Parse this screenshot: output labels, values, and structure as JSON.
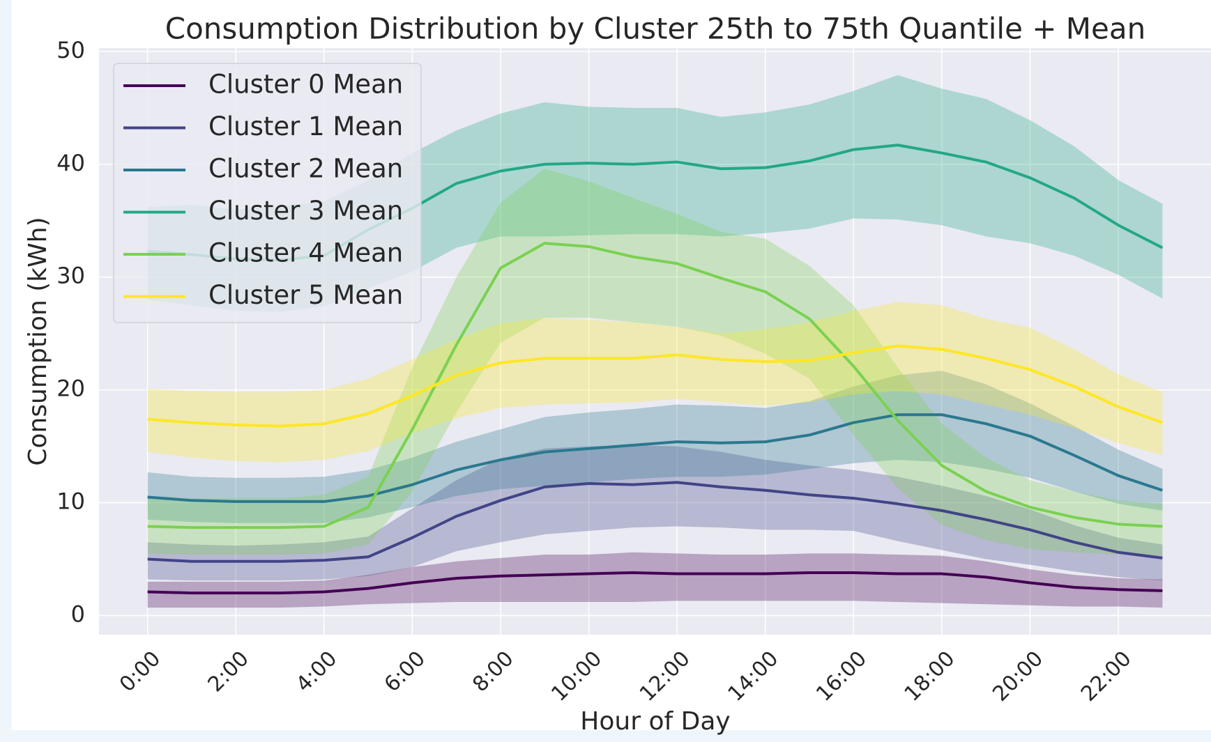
{
  "chart_data": {
    "type": "line_band",
    "title": "Consumption Distribution by Cluster 25th to 75th Quantile + Mean",
    "xlabel": "Hour of Day",
    "ylabel": "Consumption (kWh)",
    "x": [
      0,
      1,
      2,
      3,
      4,
      5,
      6,
      7,
      8,
      9,
      10,
      11,
      12,
      13,
      14,
      15,
      16,
      17,
      18,
      19,
      20,
      21,
      22,
      23
    ],
    "xlim": [
      -1.1,
      24.1
    ],
    "xticks": [
      {
        "value": 0,
        "label": "0:00"
      },
      {
        "value": 2,
        "label": "2:00"
      },
      {
        "value": 4,
        "label": "4:00"
      },
      {
        "value": 6,
        "label": "6:00"
      },
      {
        "value": 8,
        "label": "8:00"
      },
      {
        "value": 10,
        "label": "10:00"
      },
      {
        "value": 12,
        "label": "12:00"
      },
      {
        "value": 14,
        "label": "14:00"
      },
      {
        "value": 16,
        "label": "16:00"
      },
      {
        "value": 18,
        "label": "18:00"
      },
      {
        "value": 20,
        "label": "20:00"
      },
      {
        "value": 22,
        "label": "22:00"
      }
    ],
    "ylim": [
      -1.7,
      50.3
    ],
    "yticks": [
      0,
      10,
      20,
      30,
      40,
      50
    ],
    "grid": true,
    "legend": "upper left",
    "series": [
      {
        "name": "Cluster 0 Mean",
        "color": "#440154",
        "values": [
          2.1,
          2.0,
          2.0,
          2.0,
          2.1,
          2.4,
          2.9,
          3.3,
          3.5,
          3.6,
          3.7,
          3.8,
          3.7,
          3.7,
          3.7,
          3.8,
          3.8,
          3.7,
          3.7,
          3.4,
          2.9,
          2.5,
          2.3,
          2.2
        ],
        "q25": [
          0.7,
          0.7,
          0.7,
          0.7,
          0.8,
          1.0,
          1.1,
          1.2,
          1.2,
          1.2,
          1.2,
          1.2,
          1.3,
          1.3,
          1.3,
          1.3,
          1.3,
          1.2,
          1.1,
          1.0,
          0.9,
          0.8,
          0.8,
          0.7
        ],
        "q75": [
          3.0,
          3.0,
          3.0,
          3.0,
          3.1,
          3.6,
          4.3,
          4.8,
          5.1,
          5.4,
          5.4,
          5.6,
          5.5,
          5.4,
          5.4,
          5.5,
          5.5,
          5.4,
          5.3,
          4.8,
          4.1,
          3.6,
          3.3,
          3.2
        ]
      },
      {
        "name": "Cluster 1 Mean",
        "color": "#414487",
        "values": [
          5.0,
          4.8,
          4.8,
          4.8,
          4.9,
          5.2,
          6.9,
          8.8,
          10.2,
          11.4,
          11.7,
          11.6,
          11.8,
          11.4,
          11.1,
          10.7,
          10.4,
          9.9,
          9.3,
          8.5,
          7.6,
          6.5,
          5.6,
          5.1
        ],
        "q25": [
          3.2,
          3.1,
          3.1,
          3.1,
          3.2,
          3.5,
          4.3,
          5.7,
          6.5,
          7.2,
          7.5,
          7.8,
          7.9,
          7.8,
          7.6,
          7.6,
          7.5,
          6.6,
          5.8,
          5.0,
          4.5,
          3.9,
          3.4,
          3.1
        ],
        "q75": [
          6.5,
          6.3,
          6.2,
          6.3,
          6.5,
          7.0,
          9.5,
          12.0,
          13.9,
          14.8,
          15.0,
          15.1,
          15.0,
          14.5,
          13.8,
          13.3,
          12.9,
          12.3,
          11.5,
          10.6,
          9.4,
          8.0,
          6.9,
          6.3
        ]
      },
      {
        "name": "Cluster 2 Mean",
        "color": "#2a788e",
        "values": [
          10.5,
          10.2,
          10.1,
          10.1,
          10.1,
          10.6,
          11.6,
          12.9,
          13.8,
          14.5,
          14.8,
          15.1,
          15.4,
          15.3,
          15.4,
          16.0,
          17.1,
          17.8,
          17.8,
          17.0,
          15.9,
          14.2,
          12.4,
          11.1
        ],
        "q25": [
          8.5,
          8.3,
          8.2,
          8.2,
          8.2,
          8.7,
          9.6,
          10.6,
          11.2,
          11.5,
          11.8,
          12.1,
          12.3,
          12.3,
          12.5,
          13.0,
          13.5,
          13.8,
          13.6,
          13.0,
          12.2,
          11.0,
          9.9,
          9.3
        ],
        "q75": [
          12.7,
          12.3,
          12.2,
          12.2,
          12.3,
          12.9,
          14.0,
          15.4,
          16.5,
          17.6,
          18.0,
          18.3,
          18.7,
          18.6,
          18.4,
          19.0,
          20.3,
          21.3,
          21.7,
          20.5,
          18.8,
          16.8,
          14.7,
          13.0
        ]
      },
      {
        "name": "Cluster 3 Mean",
        "color": "#22a884",
        "values": [
          32.3,
          32.0,
          31.6,
          31.5,
          31.9,
          34.2,
          36.1,
          38.3,
          39.4,
          40.0,
          40.1,
          40.0,
          40.2,
          39.6,
          39.7,
          40.3,
          41.3,
          41.7,
          41.0,
          40.2,
          38.8,
          37.0,
          34.6,
          32.6
        ],
        "q25": [
          28.0,
          27.5,
          27.0,
          26.9,
          27.4,
          29.0,
          30.5,
          32.6,
          33.6,
          33.6,
          33.7,
          33.8,
          33.8,
          33.6,
          33.9,
          34.3,
          35.2,
          35.1,
          34.6,
          33.6,
          33.0,
          31.9,
          30.2,
          28.1
        ],
        "q75": [
          36.2,
          36.4,
          36.0,
          36.3,
          36.7,
          38.6,
          41.0,
          43.0,
          44.5,
          45.5,
          45.1,
          45.0,
          45.0,
          44.2,
          44.6,
          45.3,
          46.5,
          47.9,
          46.7,
          45.8,
          43.9,
          41.6,
          38.6,
          36.5
        ]
      },
      {
        "name": "Cluster 4 Mean",
        "color": "#7ad151",
        "values": [
          7.9,
          7.8,
          7.8,
          7.8,
          7.9,
          9.6,
          16.5,
          24.0,
          30.8,
          33.0,
          32.7,
          31.8,
          31.2,
          29.9,
          28.7,
          26.3,
          22.1,
          17.3,
          13.3,
          11.0,
          9.6,
          8.7,
          8.1,
          7.9
        ],
        "q25": [
          5.5,
          5.4,
          5.4,
          5.4,
          5.5,
          6.3,
          11.0,
          18.0,
          24.2,
          26.4,
          26.4,
          26.0,
          25.6,
          24.8,
          23.2,
          21.0,
          16.0,
          11.3,
          8.0,
          6.7,
          5.9,
          5.6,
          5.4,
          5.3
        ],
        "q75": [
          10.6,
          10.4,
          10.4,
          10.4,
          10.7,
          12.3,
          22.0,
          30.0,
          36.6,
          39.6,
          38.5,
          37.0,
          35.6,
          34.0,
          33.4,
          31.0,
          27.5,
          22.0,
          17.0,
          14.0,
          12.0,
          11.0,
          10.2,
          9.9
        ]
      },
      {
        "name": "Cluster 5 Mean",
        "color": "#fde725",
        "values": [
          17.4,
          17.1,
          16.9,
          16.8,
          17.0,
          17.9,
          19.5,
          21.3,
          22.4,
          22.8,
          22.8,
          22.8,
          23.1,
          22.7,
          22.5,
          22.6,
          23.3,
          23.9,
          23.6,
          22.8,
          21.8,
          20.3,
          18.5,
          17.1
        ],
        "q25": [
          14.5,
          14.0,
          13.7,
          13.6,
          13.8,
          14.6,
          16.2,
          17.5,
          18.4,
          18.7,
          18.8,
          18.9,
          19.2,
          18.9,
          18.6,
          18.9,
          19.6,
          19.9,
          19.6,
          18.7,
          17.8,
          16.6,
          15.3,
          14.2
        ],
        "q75": [
          20.1,
          19.9,
          19.8,
          19.8,
          20.0,
          21.0,
          22.7,
          24.5,
          25.9,
          26.4,
          26.2,
          26.0,
          25.6,
          25.0,
          25.4,
          26.0,
          27.0,
          27.8,
          27.5,
          26.3,
          25.5,
          23.6,
          21.4,
          19.8
        ]
      }
    ]
  }
}
